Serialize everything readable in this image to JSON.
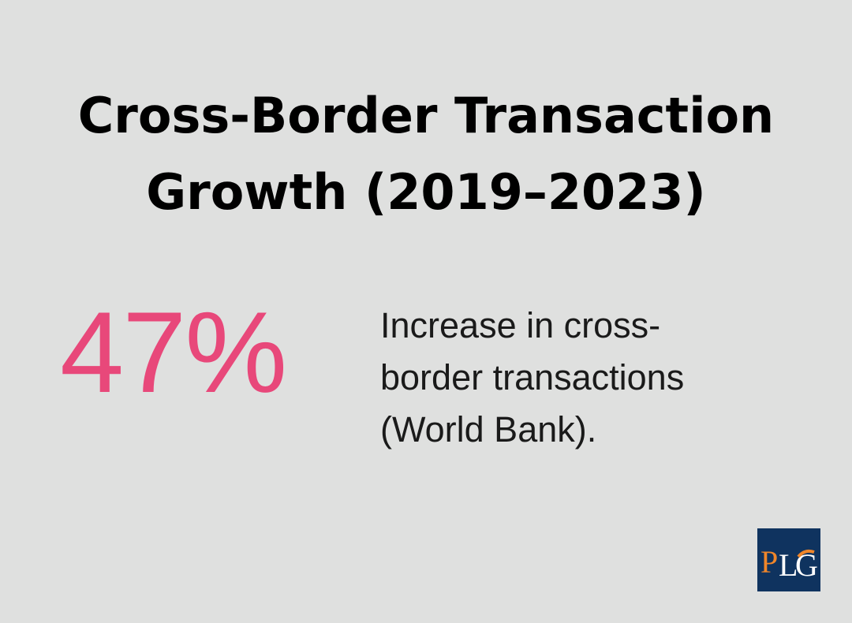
{
  "title": {
    "line1": "Cross-Border Transaction",
    "line2": "Growth (2019–2023)"
  },
  "stat": {
    "value": "47%",
    "color": "#e8487a"
  },
  "description": {
    "line1": "Increase in cross-",
    "line2": "border transactions",
    "line3": "(World Bank)."
  },
  "logo": {
    "text": "PLG",
    "bg": "#0f335f",
    "accent": "#f0862a"
  }
}
